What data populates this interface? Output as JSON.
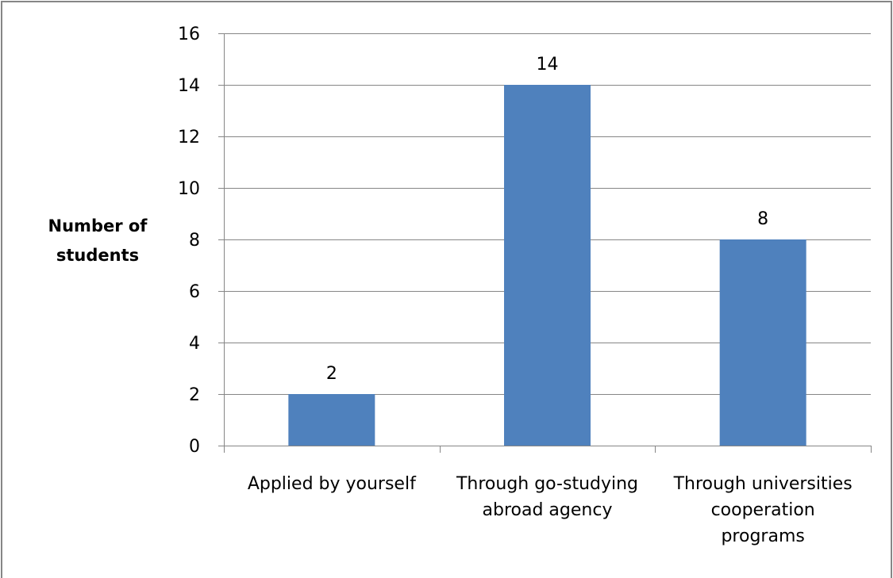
{
  "chart_data": {
    "type": "bar",
    "title": "",
    "xlabel": "",
    "ylabel": "Number of students",
    "ylabel_lines": [
      "Number of",
      "students"
    ],
    "categories": [
      "Applied by yourself",
      "Through go-studying abroad agency",
      "Through universities cooperation programs"
    ],
    "category_lines": [
      [
        "Applied by yourself"
      ],
      [
        "Through go-studying",
        "abroad agency"
      ],
      [
        "Through universities",
        "cooperation",
        "programs"
      ]
    ],
    "values": [
      2,
      14,
      8
    ],
    "data_labels": [
      "2",
      "14",
      "8"
    ],
    "ylim": [
      0,
      16
    ],
    "y_ticks": [
      0,
      2,
      4,
      6,
      8,
      10,
      12,
      14,
      16
    ],
    "grid": true,
    "legend": "none",
    "bar_color": "#4F81BD",
    "grid_color": "#868686",
    "frame_color": "#868686"
  }
}
